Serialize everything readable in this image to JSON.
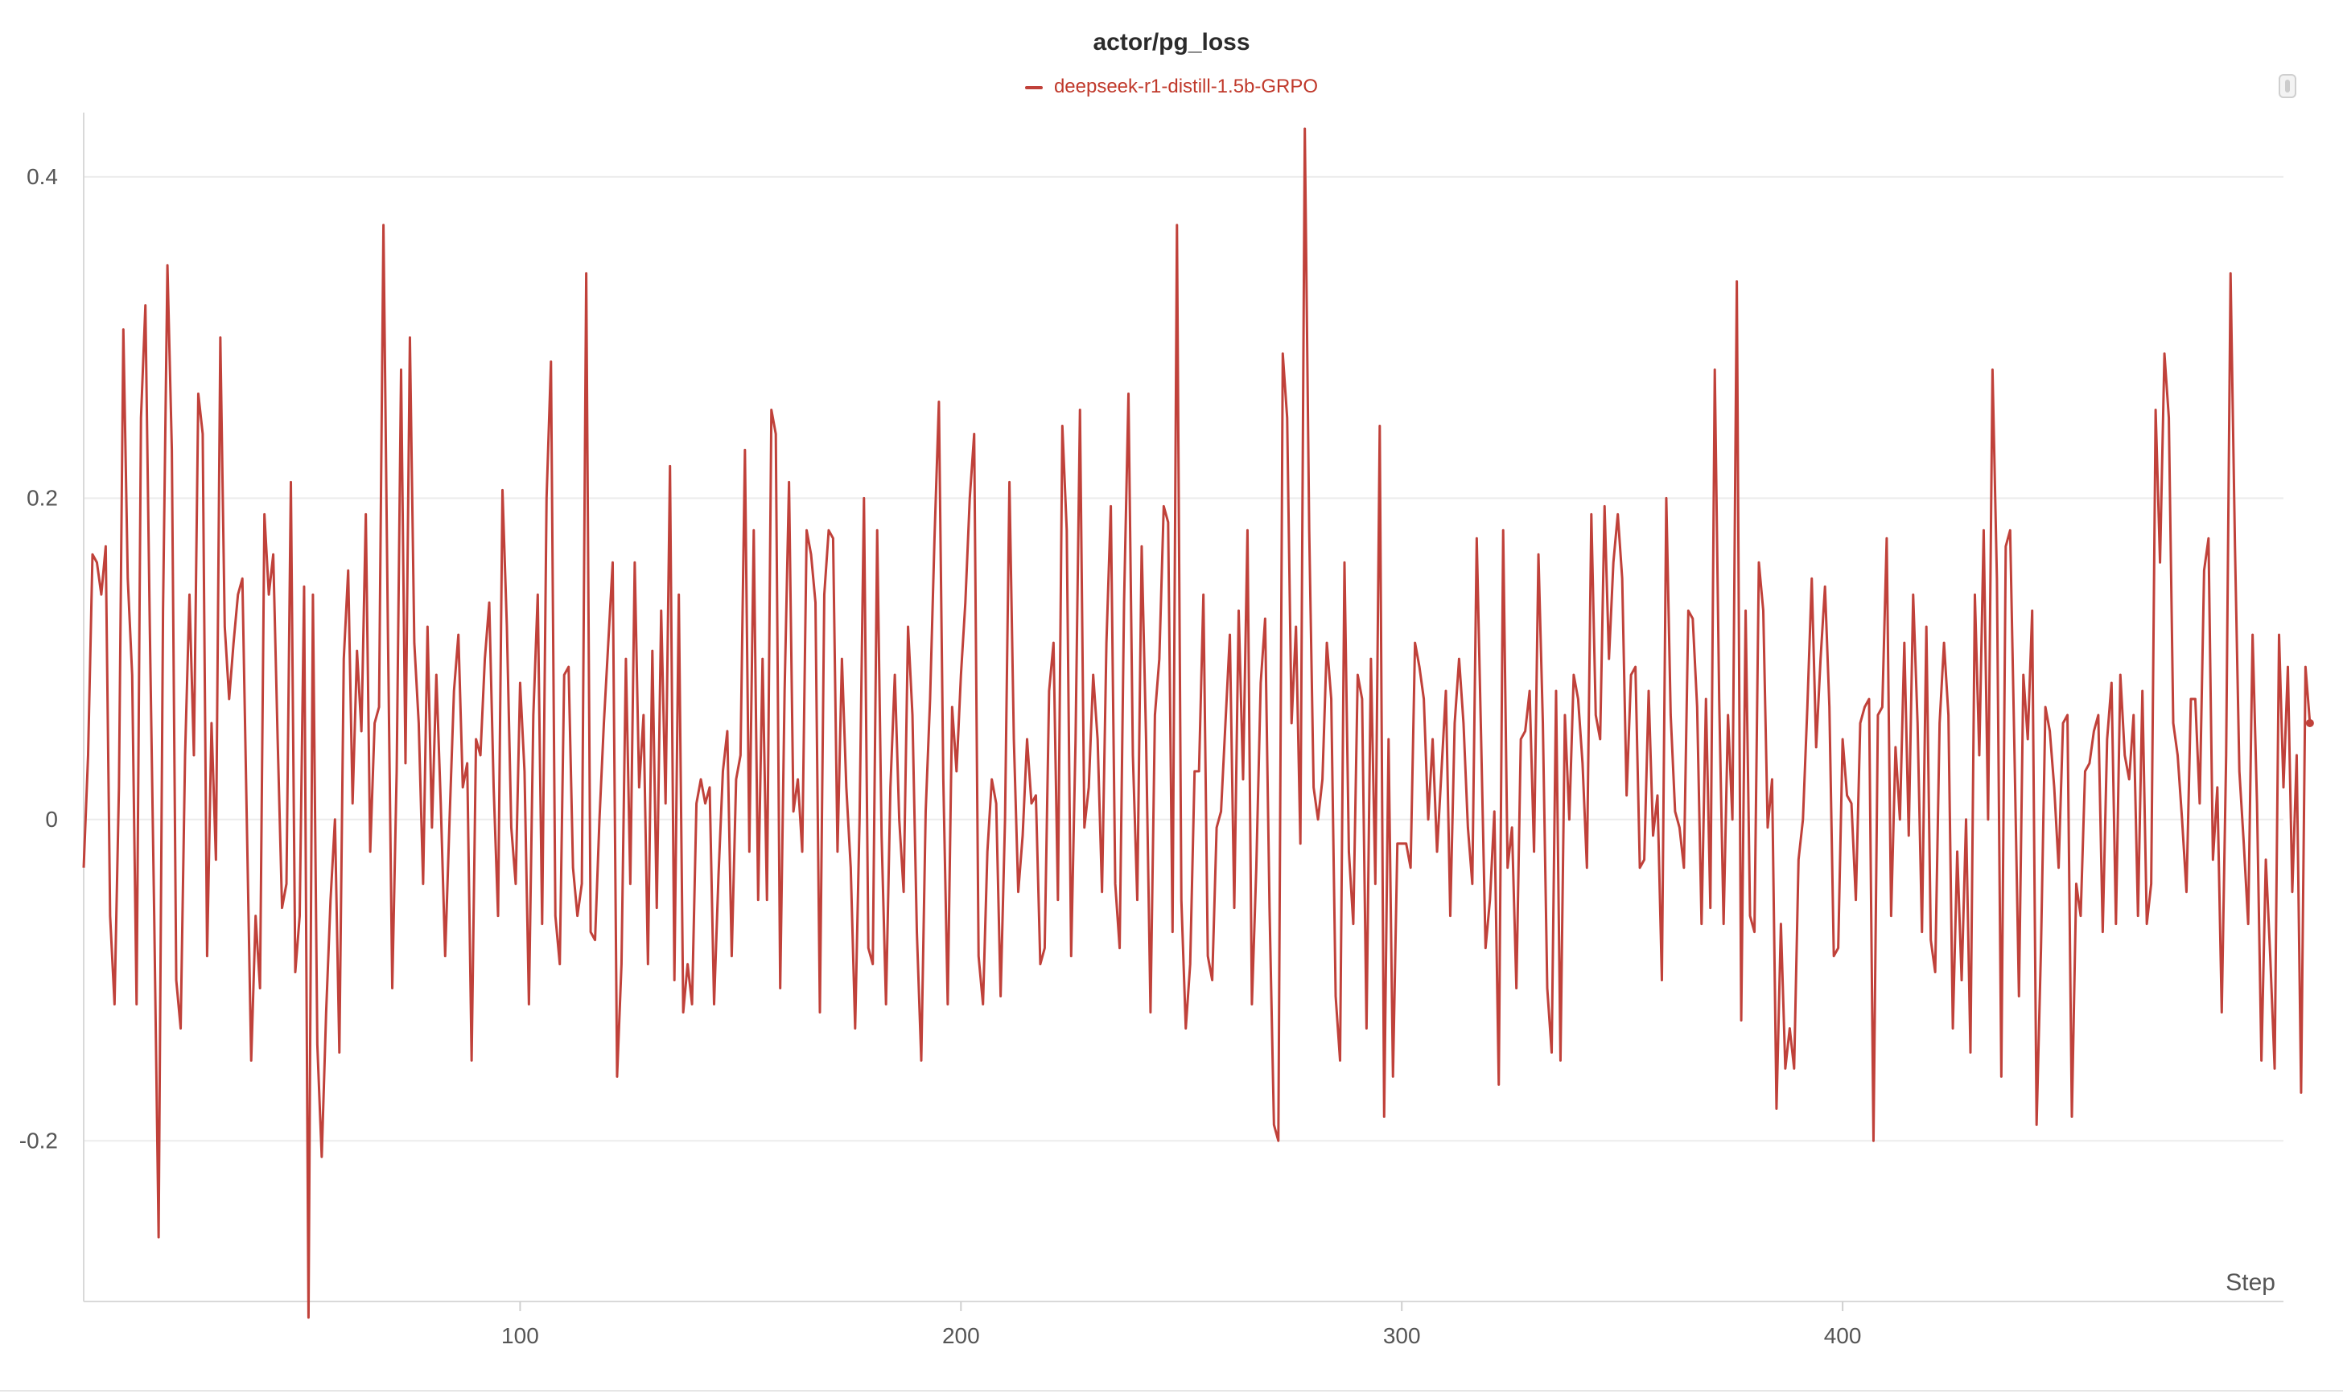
{
  "chart_data": {
    "type": "line",
    "title": "actor/pg_loss",
    "xlabel": "Step",
    "ylabel": "",
    "xlim": [
      1,
      500
    ],
    "ylim": [
      -0.3,
      0.44
    ],
    "x_ticks": [
      100,
      200,
      300,
      400
    ],
    "y_ticks": [
      0.4,
      0.2,
      0,
      -0.2
    ],
    "y_tick_labels": [
      "0.4",
      "0.2",
      "0",
      "-0.2"
    ],
    "grid": true,
    "legend_position": "top-center",
    "series": [
      {
        "name": "deepseek-r1-distill-1.5b-GRPO",
        "color": "#c0413a",
        "x_start": 1,
        "x_step": 1,
        "values": [
          -0.03,
          0.04,
          0.165,
          0.16,
          0.14,
          0.17,
          -0.06,
          -0.115,
          0.02,
          0.305,
          0.15,
          0.09,
          -0.115,
          0.25,
          0.32,
          0.12,
          -0.06,
          -0.26,
          0.13,
          0.345,
          0.23,
          -0.1,
          -0.13,
          0.04,
          0.14,
          0.04,
          0.265,
          0.24,
          -0.085,
          0.06,
          -0.025,
          0.3,
          0.12,
          0.075,
          0.11,
          0.14,
          0.15,
          0.0,
          -0.15,
          -0.06,
          -0.105,
          0.19,
          0.14,
          0.165,
          0.05,
          -0.055,
          -0.04,
          0.21,
          -0.095,
          -0.06,
          0.145,
          -0.31,
          0.14,
          -0.14,
          -0.21,
          -0.12,
          -0.05,
          0.0,
          -0.145,
          0.1,
          0.155,
          0.01,
          0.105,
          0.055,
          0.19,
          -0.02,
          0.06,
          0.07,
          0.37,
          0.12,
          -0.105,
          0.03,
          0.28,
          0.035,
          0.3,
          0.11,
          0.06,
          -0.04,
          0.12,
          -0.005,
          0.09,
          0.01,
          -0.085,
          0.0,
          0.08,
          0.115,
          0.02,
          0.035,
          -0.15,
          0.05,
          0.04,
          0.1,
          0.135,
          0.02,
          -0.06,
          0.205,
          0.12,
          -0.005,
          -0.04,
          0.085,
          0.03,
          -0.115,
          0.065,
          0.14,
          -0.065,
          0.2,
          0.285,
          -0.06,
          -0.09,
          0.09,
          0.095,
          -0.03,
          -0.06,
          -0.04,
          0.34,
          -0.07,
          -0.075,
          0.0,
          0.06,
          0.11,
          0.16,
          -0.16,
          -0.09,
          0.1,
          -0.04,
          0.16,
          0.02,
          0.065,
          -0.09,
          0.105,
          -0.055,
          0.13,
          0.01,
          0.22,
          -0.1,
          0.14,
          -0.12,
          -0.09,
          -0.115,
          0.01,
          0.025,
          0.01,
          0.02,
          -0.115,
          -0.035,
          0.03,
          0.055,
          -0.085,
          0.025,
          0.04,
          0.23,
          -0.02,
          0.18,
          -0.05,
          0.1,
          -0.05,
          0.255,
          0.24,
          -0.105,
          0.08,
          0.21,
          0.005,
          0.025,
          -0.02,
          0.18,
          0.165,
          0.135,
          -0.12,
          0.14,
          0.18,
          0.175,
          -0.02,
          0.1,
          0.02,
          -0.03,
          -0.13,
          0.0,
          0.2,
          -0.08,
          -0.09,
          0.18,
          -0.01,
          -0.115,
          0.02,
          0.09,
          0.0,
          -0.045,
          0.12,
          0.065,
          -0.07,
          -0.15,
          0.005,
          0.075,
          0.175,
          0.26,
          0.025,
          -0.115,
          0.07,
          0.03,
          0.09,
          0.135,
          0.2,
          0.24,
          -0.085,
          -0.115,
          -0.02,
          0.025,
          0.01,
          -0.11,
          0.0,
          0.21,
          0.05,
          -0.045,
          -0.01,
          0.05,
          0.01,
          0.015,
          -0.09,
          -0.08,
          0.08,
          0.11,
          -0.05,
          0.245,
          0.18,
          -0.085,
          0.05,
          0.255,
          -0.005,
          0.02,
          0.09,
          0.05,
          -0.045,
          0.11,
          0.195,
          -0.04,
          -0.08,
          0.135,
          0.265,
          0.04,
          -0.05,
          0.17,
          0.05,
          -0.12,
          0.065,
          0.1,
          0.195,
          0.185,
          -0.07,
          0.37,
          -0.05,
          -0.13,
          -0.09,
          0.03,
          0.03,
          0.14,
          -0.085,
          -0.1,
          -0.005,
          0.005,
          0.06,
          0.115,
          -0.055,
          0.13,
          0.025,
          0.18,
          -0.115,
          -0.03,
          0.085,
          0.125,
          -0.055,
          -0.19,
          -0.2,
          0.29,
          0.25,
          0.06,
          0.12,
          -0.015,
          0.43,
          0.18,
          0.02,
          0.0,
          0.025,
          0.11,
          0.075,
          -0.11,
          -0.15,
          0.16,
          -0.02,
          -0.065,
          0.09,
          0.075,
          -0.13,
          0.1,
          -0.04,
          0.245,
          -0.185,
          0.05,
          -0.16,
          -0.015,
          -0.015,
          -0.015,
          -0.03,
          0.11,
          0.095,
          0.075,
          -0.0,
          0.05,
          -0.02,
          0.03,
          0.08,
          -0.06,
          0.06,
          0.1,
          0.06,
          -0.005,
          -0.04,
          0.175,
          0.05,
          -0.08,
          -0.05,
          0.005,
          -0.165,
          0.18,
          -0.03,
          -0.005,
          -0.105,
          0.05,
          0.055,
          0.08,
          -0.02,
          0.165,
          0.06,
          -0.105,
          -0.145,
          0.08,
          -0.15,
          0.065,
          0.0,
          0.09,
          0.075,
          0.035,
          -0.03,
          0.19,
          0.065,
          0.05,
          0.195,
          0.1,
          0.16,
          0.19,
          0.15,
          0.015,
          0.09,
          0.095,
          -0.03,
          -0.025,
          0.08,
          -0.01,
          0.015,
          -0.1,
          0.2,
          0.065,
          0.005,
          -0.005,
          -0.03,
          0.13,
          0.125,
          0.07,
          -0.065,
          0.075,
          -0.055,
          0.28,
          0.075,
          -0.065,
          0.065,
          0.0,
          0.335,
          -0.125,
          0.13,
          -0.06,
          -0.07,
          0.16,
          0.13,
          -0.005,
          0.025,
          -0.18,
          -0.065,
          -0.155,
          -0.13,
          -0.155,
          -0.025,
          0.0,
          0.07,
          0.15,
          0.045,
          0.1,
          0.145,
          0.07,
          -0.085,
          -0.08,
          0.05,
          0.015,
          0.01,
          -0.05,
          0.06,
          0.07,
          0.075,
          -0.2,
          0.065,
          0.07,
          0.175,
          -0.06,
          0.045,
          0.0,
          0.11,
          -0.01,
          0.14,
          0.06,
          -0.07,
          0.12,
          -0.075,
          -0.095,
          0.06,
          0.11,
          0.065,
          -0.13,
          -0.02,
          -0.1,
          0.0,
          -0.145,
          0.14,
          0.04,
          0.18,
          0.0,
          0.28,
          0.15,
          -0.16,
          0.17,
          0.18,
          0.04,
          -0.11,
          0.09,
          0.05,
          0.13,
          -0.19,
          -0.08,
          0.07,
          0.055,
          0.02,
          -0.03,
          0.06,
          0.065,
          -0.185,
          -0.04,
          -0.06,
          0.03,
          0.035,
          0.055,
          0.065,
          -0.07,
          0.05,
          0.085,
          -0.065,
          0.09,
          0.04,
          0.025,
          0.065,
          -0.06,
          0.08,
          -0.065,
          -0.04,
          0.255,
          0.16,
          0.29,
          0.25,
          0.06,
          0.04,
          0.0,
          -0.045,
          0.075,
          0.075,
          0.01,
          0.155,
          0.175,
          -0.025,
          0.02,
          -0.12,
          0.04,
          0.34,
          0.17,
          0.03,
          -0.015,
          -0.065,
          0.115,
          0.01,
          -0.15,
          -0.025,
          -0.085,
          -0.155,
          0.115,
          0.02,
          0.095,
          -0.045,
          0.04,
          -0.17,
          0.095,
          0.06
        ]
      }
    ]
  }
}
